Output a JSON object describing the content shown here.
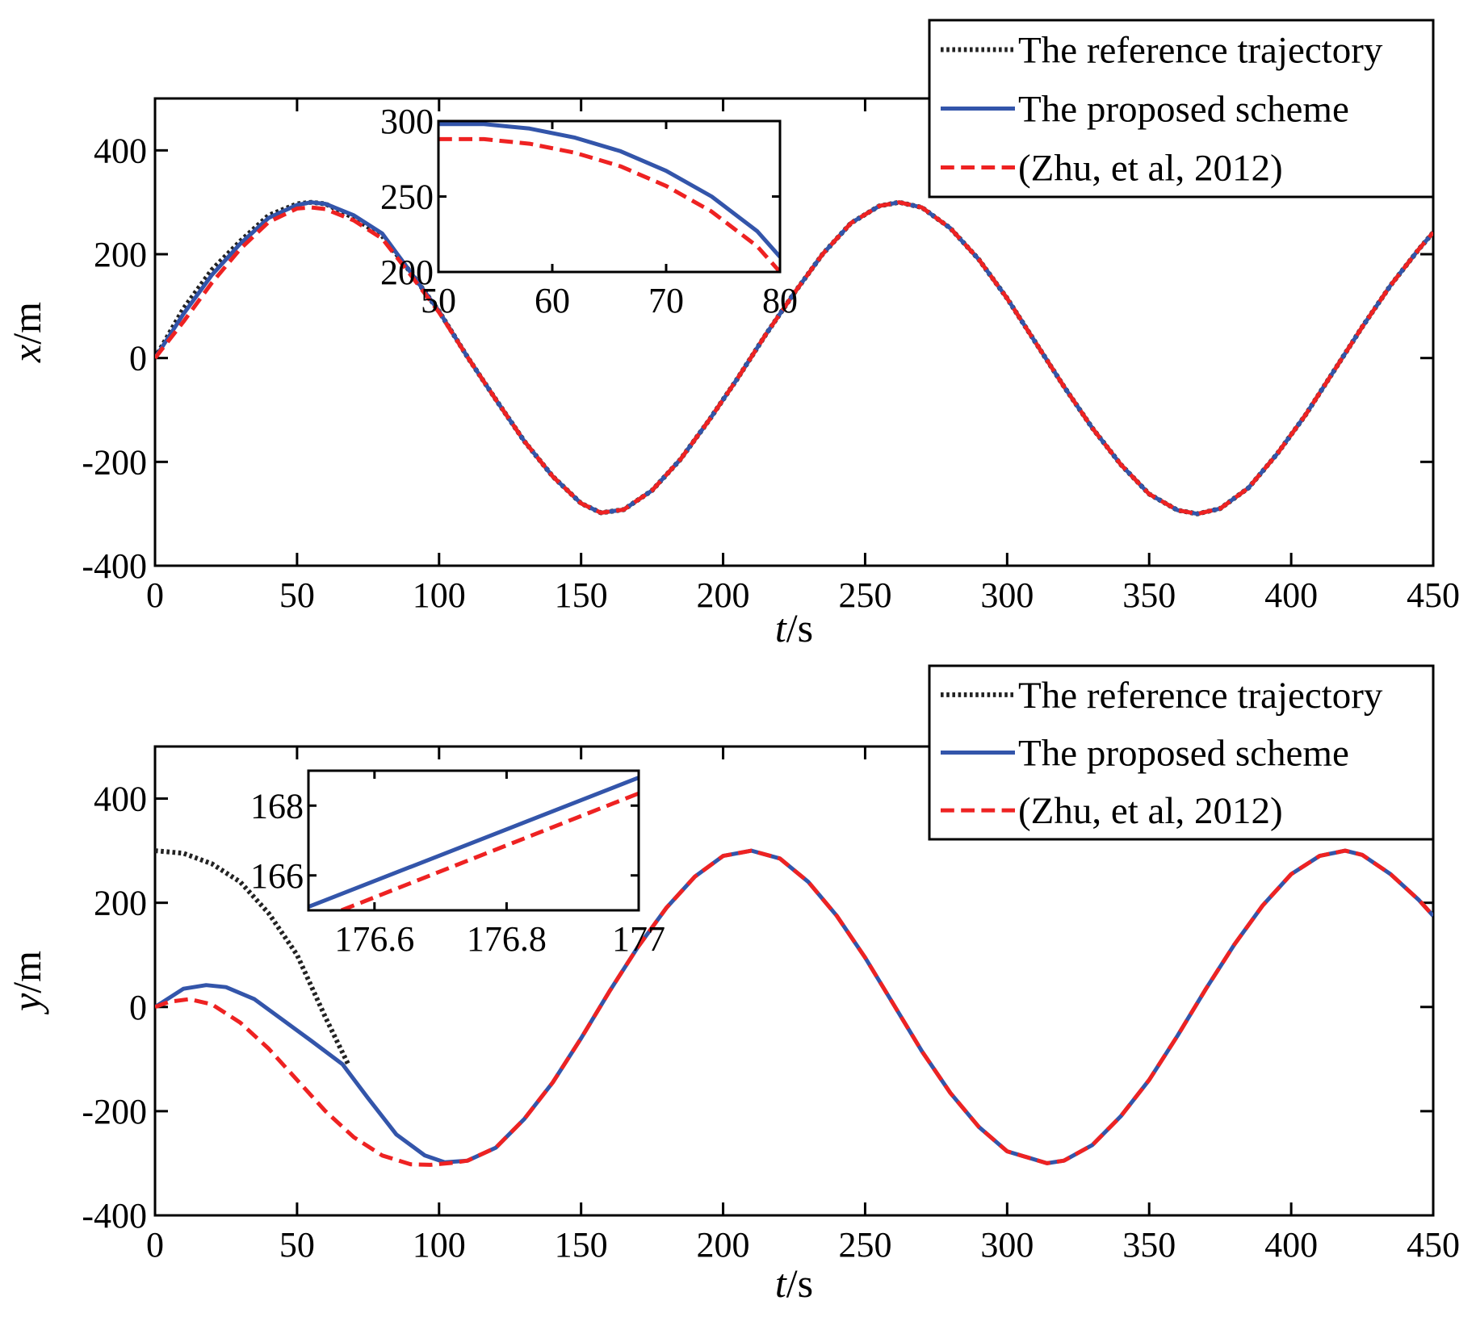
{
  "chart_data": [
    {
      "id": "x-plot",
      "type": "line",
      "xlabel_var": "t",
      "xlabel_unit": "/s",
      "ylabel_var": "x",
      "ylabel_unit": "/m",
      "xlim": [
        0,
        450
      ],
      "ylim": [
        -400,
        500
      ],
      "xticks": [
        0,
        50,
        100,
        150,
        200,
        250,
        300,
        350,
        400,
        450
      ],
      "yticks": [
        -400,
        -200,
        0,
        200,
        400
      ],
      "legend_position": "top-right",
      "series": [
        {
          "name": "The reference trajectory",
          "style": "dotted",
          "color": "#222222",
          "x": [
            0,
            10,
            20,
            30,
            40,
            50,
            55,
            60,
            70,
            80,
            90,
            100,
            110,
            120,
            130,
            140,
            150,
            157,
            165,
            175,
            185,
            195,
            205,
            215,
            225,
            235,
            245,
            255,
            262,
            270,
            280,
            290,
            300,
            310,
            320,
            330,
            340,
            350,
            360,
            367,
            375,
            385,
            395,
            405,
            415,
            425,
            435,
            445,
            450
          ],
          "y": [
            0,
            95,
            170,
            225,
            275,
            297,
            300,
            297,
            270,
            235,
            165,
            90,
            2,
            -80,
            -160,
            -228,
            -280,
            -298,
            -292,
            -255,
            -195,
            -120,
            -40,
            45,
            125,
            200,
            260,
            293,
            300,
            290,
            250,
            190,
            115,
            30,
            -55,
            -135,
            -205,
            -262,
            -293,
            -300,
            -290,
            -250,
            -185,
            -110,
            -25,
            60,
            140,
            210,
            242
          ]
        },
        {
          "name": "The proposed scheme",
          "style": "solid",
          "color": "#3355aa",
          "x": [
            0,
            10,
            20,
            30,
            40,
            50,
            55,
            60,
            70,
            80,
            90,
            100,
            110,
            120,
            130,
            140,
            150,
            157,
            165,
            175,
            185,
            195,
            205,
            215,
            225,
            235,
            245,
            255,
            262,
            270,
            280,
            290,
            300,
            310,
            320,
            330,
            340,
            350,
            360,
            367,
            375,
            385,
            395,
            405,
            415,
            425,
            435,
            445,
            450
          ],
          "y": [
            0,
            85,
            160,
            220,
            270,
            295,
            300,
            297,
            275,
            240,
            165,
            90,
            2,
            -80,
            -160,
            -228,
            -280,
            -298,
            -292,
            -255,
            -195,
            -120,
            -40,
            45,
            125,
            200,
            260,
            293,
            300,
            290,
            250,
            190,
            115,
            30,
            -55,
            -135,
            -205,
            -262,
            -293,
            -300,
            -290,
            -250,
            -185,
            -110,
            -25,
            60,
            140,
            210,
            242
          ]
        },
        {
          "name": "(Zhu, et al, 2012)",
          "style": "dashed",
          "color": "#ee2222",
          "x": [
            0,
            10,
            20,
            30,
            40,
            50,
            55,
            60,
            70,
            80,
            90,
            100,
            110,
            120,
            130,
            140,
            150,
            157,
            165,
            175,
            185,
            195,
            205,
            215,
            225,
            235,
            245,
            255,
            262,
            270,
            280,
            290,
            300,
            310,
            320,
            330,
            340,
            350,
            360,
            367,
            375,
            385,
            395,
            405,
            415,
            425,
            435,
            445,
            450
          ],
          "y": [
            0,
            70,
            145,
            210,
            262,
            288,
            290,
            287,
            265,
            230,
            160,
            88,
            2,
            -80,
            -160,
            -228,
            -280,
            -298,
            -292,
            -255,
            -195,
            -120,
            -40,
            45,
            125,
            200,
            260,
            293,
            300,
            290,
            250,
            190,
            115,
            30,
            -55,
            -135,
            -205,
            -262,
            -293,
            -300,
            -290,
            -250,
            -185,
            -110,
            -25,
            60,
            140,
            210,
            242
          ]
        }
      ],
      "inset": {
        "xlim": [
          50,
          80
        ],
        "ylim": [
          200,
          300
        ],
        "xticks": [
          50,
          60,
          70,
          80
        ],
        "yticks": [
          200,
          250,
          300
        ],
        "series": [
          {
            "name": "The proposed scheme",
            "color": "#3355aa",
            "style": "solid",
            "x": [
              50,
              54,
              58,
              62,
              66,
              70,
              74,
              78,
              80
            ],
            "y": [
              298,
              298,
              295,
              289,
              280,
              267,
              250,
              227,
              210
            ]
          },
          {
            "name": "(Zhu, et al, 2012)",
            "color": "#ee2222",
            "style": "dashed",
            "x": [
              50,
              54,
              58,
              62,
              66,
              70,
              74,
              78,
              80
            ],
            "y": [
              288,
              288,
              285,
              279,
              270,
              257,
              240,
              217,
              200
            ]
          }
        ]
      }
    },
    {
      "id": "y-plot",
      "type": "line",
      "xlabel_var": "t",
      "xlabel_unit": "/s",
      "ylabel_var": "y",
      "ylabel_unit": "/m",
      "xlim": [
        0,
        450
      ],
      "ylim": [
        -400,
        500
      ],
      "xticks": [
        0,
        50,
        100,
        150,
        200,
        250,
        300,
        350,
        400,
        450
      ],
      "yticks": [
        -400,
        -200,
        0,
        200,
        400
      ],
      "legend_position": "top-right",
      "series": [
        {
          "name": "The reference trajectory",
          "style": "dotted",
          "color": "#222222",
          "x": [
            0,
            10,
            20,
            30,
            40,
            50,
            60,
            68
          ],
          "y": [
            300,
            295,
            275,
            240,
            180,
            100,
            -20,
            -110
          ]
        },
        {
          "name": "The proposed scheme",
          "style": "solid",
          "color": "#3355aa",
          "x": [
            0,
            10,
            18,
            25,
            35,
            45,
            55,
            66,
            75,
            85,
            95,
            102,
            110,
            120,
            130,
            140,
            150,
            160,
            170,
            180,
            190,
            200,
            210,
            220,
            230,
            240,
            250,
            260,
            270,
            280,
            290,
            300,
            314,
            320,
            330,
            340,
            350,
            360,
            370,
            380,
            390,
            400,
            410,
            419,
            425,
            435,
            445,
            450
          ],
          "y": [
            0,
            35,
            42,
            38,
            15,
            -25,
            -65,
            -110,
            -175,
            -245,
            -285,
            -298,
            -295,
            -270,
            -215,
            -145,
            -60,
            30,
            115,
            190,
            250,
            290,
            300,
            285,
            240,
            175,
            95,
            5,
            -85,
            -165,
            -230,
            -277,
            -300,
            -295,
            -265,
            -210,
            -140,
            -55,
            35,
            120,
            195,
            255,
            290,
            300,
            292,
            255,
            205,
            175
          ]
        },
        {
          "name": "(Zhu, et al, 2012)",
          "style": "dashed",
          "color": "#ee2222",
          "x": [
            0,
            5,
            12,
            20,
            30,
            40,
            50,
            60,
            70,
            80,
            90,
            97,
            105,
            110,
            120,
            130,
            140,
            150,
            160,
            170,
            180,
            190,
            200,
            210,
            220,
            230,
            240,
            250,
            260,
            270,
            280,
            290,
            300,
            314,
            320,
            330,
            340,
            350,
            360,
            370,
            380,
            390,
            400,
            410,
            419,
            425,
            435,
            445,
            450
          ],
          "y": [
            0,
            10,
            15,
            5,
            -30,
            -80,
            -140,
            -200,
            -250,
            -285,
            -302,
            -303,
            -299,
            -295,
            -270,
            -215,
            -145,
            -60,
            30,
            115,
            190,
            250,
            290,
            300,
            285,
            240,
            175,
            95,
            5,
            -85,
            -165,
            -230,
            -277,
            -300,
            -295,
            -265,
            -210,
            -140,
            -55,
            35,
            120,
            195,
            255,
            290,
            300,
            292,
            255,
            205,
            175
          ]
        }
      ],
      "inset": {
        "xlim": [
          176.5,
          177.0
        ],
        "ylim": [
          165,
          169
        ],
        "xticks": [
          176.6,
          176.8,
          177.0
        ],
        "yticks": [
          166,
          168
        ],
        "xtick_labels": [
          "176.6",
          "176.8",
          "177"
        ],
        "series": [
          {
            "name": "The proposed scheme",
            "color": "#3355aa",
            "style": "solid",
            "x": [
              176.5,
              177.0
            ],
            "y": [
              165.1,
              168.8
            ]
          },
          {
            "name": "(Zhu, et al, 2012)",
            "color": "#ee2222",
            "style": "dashed",
            "x": [
              176.55,
              177.0
            ],
            "y": [
              165.0,
              168.35
            ]
          }
        ]
      }
    }
  ]
}
